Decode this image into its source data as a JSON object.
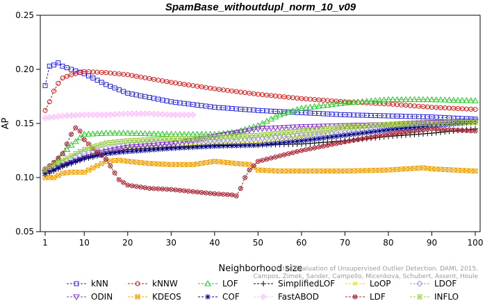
{
  "chart_data": {
    "type": "line",
    "title": "SpamBase_withoutdupl_norm_10_v09",
    "xlabel": "Neighborhood size",
    "ylabel": "AP",
    "xlim": [
      1,
      100
    ],
    "ylim": [
      0.05,
      0.25
    ],
    "xticks": [
      1,
      10,
      20,
      30,
      40,
      50,
      60,
      70,
      80,
      90,
      100
    ],
    "xtick_labels": [
      "1",
      "10",
      "20",
      "30",
      "40",
      "50",
      "60",
      "70",
      "80",
      "90",
      "100"
    ],
    "yticks": [
      0.05,
      0.1,
      0.15,
      0.2,
      0.25
    ],
    "ytick_labels": [
      "0.05",
      "0.10",
      "0.15",
      "0.20",
      "0.25"
    ],
    "grid": false,
    "legend_position": "bottom",
    "credit": [
      "Campos, Zimek, Sander, Campello, Micenkova, Schubert, Assent, Houle",
      "On the Evaluation of Unsupervised Outlier Detection. DAMI, 2015."
    ],
    "series": [
      {
        "name": "kNN",
        "color": "#2222dd",
        "marker": "square",
        "points": [
          [
            1,
            0.185
          ],
          [
            2,
            0.203
          ],
          [
            3,
            0.204
          ],
          [
            4,
            0.206
          ],
          [
            5,
            0.203
          ],
          [
            7,
            0.2
          ],
          [
            10,
            0.196
          ],
          [
            15,
            0.186
          ],
          [
            20,
            0.178
          ],
          [
            30,
            0.17
          ],
          [
            40,
            0.165
          ],
          [
            50,
            0.162
          ],
          [
            60,
            0.16
          ],
          [
            70,
            0.158
          ],
          [
            80,
            0.157
          ],
          [
            90,
            0.156
          ],
          [
            100,
            0.154
          ]
        ]
      },
      {
        "name": "kNNW",
        "color": "#dd1111",
        "marker": "circle",
        "points": [
          [
            1,
            0.162
          ],
          [
            2,
            0.17
          ],
          [
            3,
            0.18
          ],
          [
            4,
            0.187
          ],
          [
            5,
            0.192
          ],
          [
            7,
            0.195
          ],
          [
            10,
            0.198
          ],
          [
            15,
            0.197
          ],
          [
            20,
            0.195
          ],
          [
            30,
            0.188
          ],
          [
            40,
            0.182
          ],
          [
            50,
            0.177
          ],
          [
            60,
            0.173
          ],
          [
            70,
            0.17
          ],
          [
            80,
            0.168
          ],
          [
            90,
            0.165
          ],
          [
            100,
            0.163
          ]
        ]
      },
      {
        "name": "LOF",
        "color": "#22cc22",
        "marker": "triangle",
        "points": [
          [
            1,
            0.106
          ],
          [
            3,
            0.113
          ],
          [
            5,
            0.122
          ],
          [
            7,
            0.13
          ],
          [
            10,
            0.14
          ],
          [
            15,
            0.141
          ],
          [
            20,
            0.141
          ],
          [
            30,
            0.14
          ],
          [
            40,
            0.14
          ],
          [
            45,
            0.142
          ],
          [
            50,
            0.148
          ],
          [
            55,
            0.158
          ],
          [
            60,
            0.164
          ],
          [
            70,
            0.169
          ],
          [
            80,
            0.172
          ],
          [
            90,
            0.172
          ],
          [
            100,
            0.171
          ]
        ]
      },
      {
        "name": "SimplifiedLOF",
        "color": "#000000",
        "marker": "plus",
        "points": [
          [
            1,
            0.102
          ],
          [
            3,
            0.106
          ],
          [
            5,
            0.11
          ],
          [
            10,
            0.117
          ],
          [
            15,
            0.122
          ],
          [
            20,
            0.126
          ],
          [
            30,
            0.128
          ],
          [
            40,
            0.13
          ],
          [
            50,
            0.13
          ],
          [
            60,
            0.131
          ],
          [
            70,
            0.134
          ],
          [
            80,
            0.138
          ],
          [
            90,
            0.141
          ],
          [
            100,
            0.145
          ]
        ]
      },
      {
        "name": "LoOP",
        "color": "#e0e000",
        "marker": "x",
        "points": [
          [
            1,
            0.103
          ],
          [
            3,
            0.107
          ],
          [
            5,
            0.111
          ],
          [
            10,
            0.118
          ],
          [
            15,
            0.124
          ],
          [
            20,
            0.128
          ],
          [
            30,
            0.13
          ],
          [
            40,
            0.132
          ],
          [
            50,
            0.133
          ],
          [
            60,
            0.138
          ],
          [
            70,
            0.145
          ],
          [
            80,
            0.15
          ],
          [
            90,
            0.152
          ],
          [
            100,
            0.152
          ]
        ]
      },
      {
        "name": "LDOF",
        "color": "#9999ee",
        "marker": "diamond",
        "points": [
          [
            1,
            0.106
          ],
          [
            3,
            0.11
          ],
          [
            5,
            0.114
          ],
          [
            10,
            0.122
          ],
          [
            15,
            0.127
          ],
          [
            20,
            0.13
          ],
          [
            30,
            0.133
          ],
          [
            40,
            0.134
          ],
          [
            50,
            0.136
          ],
          [
            60,
            0.139
          ],
          [
            70,
            0.142
          ],
          [
            80,
            0.146
          ],
          [
            90,
            0.15
          ],
          [
            100,
            0.153
          ]
        ]
      },
      {
        "name": "ODIN",
        "color": "#8833cc",
        "marker": "triangle-down",
        "points": [
          [
            1,
            0.105
          ],
          [
            3,
            0.108
          ],
          [
            5,
            0.111
          ],
          [
            10,
            0.118
          ],
          [
            15,
            0.124
          ],
          [
            20,
            0.128
          ],
          [
            30,
            0.131
          ],
          [
            40,
            0.138
          ],
          [
            50,
            0.145
          ],
          [
            60,
            0.147
          ],
          [
            70,
            0.148
          ],
          [
            80,
            0.149
          ],
          [
            90,
            0.151
          ],
          [
            100,
            0.152
          ]
        ]
      },
      {
        "name": "KDEOS",
        "color": "#f0a000",
        "marker": "square-x",
        "points": [
          [
            1,
            0.1
          ],
          [
            3,
            0.1
          ],
          [
            5,
            0.104
          ],
          [
            7,
            0.105
          ],
          [
            10,
            0.105
          ],
          [
            15,
            0.115
          ],
          [
            18,
            0.116
          ],
          [
            20,
            0.115
          ],
          [
            25,
            0.113
          ],
          [
            30,
            0.112
          ],
          [
            35,
            0.112
          ],
          [
            40,
            0.115
          ],
          [
            45,
            0.113
          ],
          [
            48,
            0.112
          ],
          [
            50,
            0.107
          ],
          [
            55,
            0.106
          ],
          [
            60,
            0.106
          ],
          [
            70,
            0.106
          ],
          [
            80,
            0.107
          ],
          [
            88,
            0.109
          ],
          [
            90,
            0.108
          ],
          [
            100,
            0.106
          ]
        ]
      },
      {
        "name": "COF",
        "color": "#000088",
        "marker": "star",
        "points": [
          [
            1,
            0.104
          ],
          [
            3,
            0.107
          ],
          [
            5,
            0.111
          ],
          [
            10,
            0.118
          ],
          [
            15,
            0.122
          ],
          [
            20,
            0.124
          ],
          [
            30,
            0.127
          ],
          [
            40,
            0.129
          ],
          [
            50,
            0.13
          ],
          [
            60,
            0.134
          ],
          [
            70,
            0.139
          ],
          [
            80,
            0.144
          ],
          [
            90,
            0.148
          ],
          [
            100,
            0.151
          ]
        ]
      },
      {
        "name": "FastABOD",
        "color": "#ffbbff",
        "marker": "diamond-plus",
        "points": [
          [
            1,
            0.155
          ],
          [
            5,
            0.157
          ],
          [
            10,
            0.158
          ],
          [
            15,
            0.158
          ],
          [
            20,
            0.159
          ],
          [
            25,
            0.159
          ],
          [
            30,
            0.158
          ],
          [
            35,
            0.158
          ]
        ]
      },
      {
        "name": "LDF",
        "color": "#aa2233",
        "marker": "circle-x",
        "points": [
          [
            1,
            0.108
          ],
          [
            3,
            0.114
          ],
          [
            5,
            0.122
          ],
          [
            7,
            0.14
          ],
          [
            8,
            0.146
          ],
          [
            9,
            0.143
          ],
          [
            10,
            0.135
          ],
          [
            12,
            0.127
          ],
          [
            15,
            0.117
          ],
          [
            18,
            0.098
          ],
          [
            20,
            0.093
          ],
          [
            25,
            0.09
          ],
          [
            30,
            0.089
          ],
          [
            35,
            0.087
          ],
          [
            40,
            0.085
          ],
          [
            44,
            0.084
          ],
          [
            45,
            0.083
          ],
          [
            46,
            0.09
          ],
          [
            47,
            0.1
          ],
          [
            48,
            0.107
          ],
          [
            50,
            0.115
          ],
          [
            55,
            0.12
          ],
          [
            60,
            0.125
          ],
          [
            70,
            0.133
          ],
          [
            80,
            0.14
          ],
          [
            90,
            0.145
          ],
          [
            100,
            0.143
          ]
        ]
      },
      {
        "name": "INFLO",
        "color": "#99cc44",
        "marker": "hourglass",
        "points": [
          [
            1,
            0.107
          ],
          [
            3,
            0.112
          ],
          [
            5,
            0.116
          ],
          [
            10,
            0.126
          ],
          [
            15,
            0.132
          ],
          [
            20,
            0.134
          ],
          [
            30,
            0.136
          ],
          [
            40,
            0.137
          ],
          [
            50,
            0.139
          ],
          [
            60,
            0.143
          ],
          [
            70,
            0.147
          ],
          [
            80,
            0.149
          ],
          [
            90,
            0.15
          ],
          [
            100,
            0.151
          ]
        ]
      }
    ]
  }
}
